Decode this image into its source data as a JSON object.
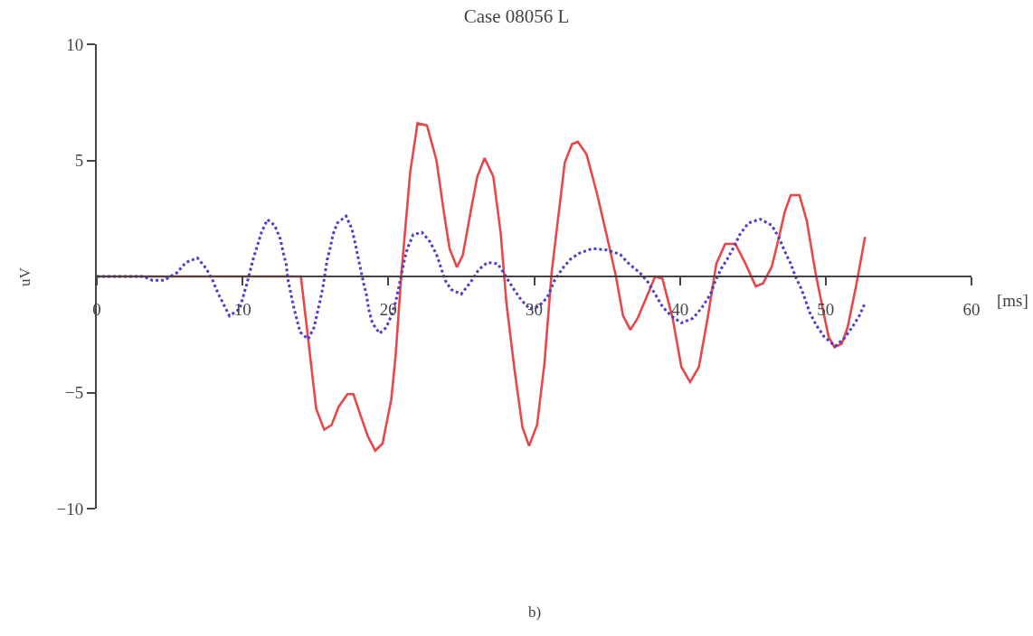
{
  "chart_data": {
    "type": "line",
    "title": "Case 08056 L",
    "xlabel": "[ms]",
    "ylabel": "uV",
    "annotations": [
      "b)"
    ],
    "xlim": [
      0,
      60
    ],
    "xticks": [
      0,
      10,
      20,
      30,
      40,
      50,
      60
    ],
    "ylim": [
      -10,
      10
    ],
    "yticks": [
      10,
      5,
      {
        "value": -5,
        "label": "−5"
      },
      {
        "value": -10,
        "label": "−10"
      }
    ],
    "marker": "none",
    "series": [
      {
        "color": "#e8474a",
        "line_style": "solid",
        "x": [
          0,
          14.0,
          14.5,
          15.05,
          15.6,
          16.1,
          16.6,
          17.2,
          17.6,
          18.1,
          18.6,
          19.1,
          19.6,
          20.2,
          20.5,
          20.9,
          21.5,
          22.0,
          22.65,
          23.3,
          23.8,
          24.2,
          24.7,
          25.1,
          25.65,
          26.1,
          26.6,
          27.2,
          27.7,
          28.1,
          28.65,
          29.2,
          29.65,
          30.2,
          30.7,
          31.2,
          32.1,
          32.6,
          33.0,
          33.6,
          34.3,
          34.95,
          35.6,
          36.1,
          36.6,
          37.1,
          37.8,
          38.3,
          38.8,
          39.5,
          40.1,
          40.7,
          41.3,
          41.9,
          42.5,
          43.1,
          43.8,
          44.5,
          45.2,
          45.7,
          46.3,
          46.8,
          47.2,
          47.6,
          48.2,
          48.7,
          49.3,
          49.8,
          50.2,
          50.6,
          51.1,
          51.5,
          52.1,
          52.7
        ],
        "values": [
          0,
          0,
          -2.7,
          -5.7,
          -6.6,
          -6.4,
          -5.6,
          -5.07,
          -5.07,
          -6.0,
          -6.9,
          -7.5,
          -7.2,
          -5.3,
          -3.4,
          0.16,
          4.5,
          6.6,
          6.5,
          5.0,
          2.8,
          1.2,
          0.4,
          0.9,
          2.8,
          4.3,
          5.1,
          4.3,
          1.9,
          -1.15,
          -4.0,
          -6.5,
          -7.3,
          -6.4,
          -3.8,
          0.16,
          4.9,
          5.7,
          5.8,
          5.25,
          3.6,
          1.85,
          0.04,
          -1.7,
          -2.3,
          -1.8,
          -0.76,
          0,
          -0.1,
          -1.8,
          -3.9,
          -4.55,
          -3.9,
          -1.8,
          0.55,
          1.4,
          1.4,
          0.55,
          -0.43,
          -0.3,
          0.42,
          1.7,
          2.8,
          3.5,
          3.5,
          2.4,
          0.16,
          -1.4,
          -2.6,
          -3.05,
          -2.9,
          -2.2,
          -0.36,
          1.7
        ]
      },
      {
        "color": "#4a3fc8",
        "line_style": "dotted",
        "x": [
          0,
          3.2,
          3.8,
          4.6,
          5.5,
          6.1,
          6.9,
          7.5,
          7.95,
          8.3,
          8.7,
          9.1,
          9.8,
          10.3,
          10.75,
          11.1,
          11.3,
          11.7,
          12.2,
          12.6,
          12.8,
          13.0,
          13.1,
          13.3,
          13.5,
          13.7,
          13.95,
          14.5,
          14.9,
          15.3,
          15.5,
          15.8,
          16.0,
          16.2,
          16.5,
          17.1,
          17.5,
          17.7,
          17.9,
          18.1,
          18.3,
          18.5,
          18.65,
          18.9,
          19.4,
          19.85,
          20.2,
          20.5,
          20.7,
          20.9,
          21.1,
          21.3,
          21.7,
          22.3,
          22.85,
          23.3,
          23.6,
          23.9,
          24.3,
          25.0,
          25.65,
          26.2,
          26.8,
          27.5,
          27.9,
          28.55,
          29.1,
          29.7,
          30.3,
          30.9,
          31.4,
          31.95,
          32.5,
          33.1,
          34.0,
          35.0,
          35.9,
          36.5,
          37.25,
          37.8,
          38.3,
          38.8,
          39.4,
          40.1,
          40.9,
          41.5,
          42.1,
          42.4,
          42.8,
          43.25,
          43.7,
          44.1,
          44.7,
          45.5,
          46.3,
          46.8,
          47.2,
          47.6,
          47.9,
          48.3,
          48.6,
          48.9,
          49.35,
          49.9,
          50.65,
          51.3,
          51.8,
          52.3,
          52.7
        ],
        "values": [
          0,
          0,
          -0.17,
          -0.17,
          0.16,
          0.6,
          0.8,
          0.35,
          -0.17,
          -0.7,
          -1.2,
          -1.7,
          -1.4,
          -0.3,
          0.8,
          1.5,
          1.9,
          2.45,
          2.2,
          1.6,
          1.0,
          0.5,
          -0.1,
          -0.7,
          -1.3,
          -1.8,
          -2.4,
          -2.7,
          -2.2,
          -1.1,
          -0.5,
          0.7,
          1.2,
          1.8,
          2.3,
          2.6,
          2.05,
          1.5,
          0.9,
          0.3,
          -0.3,
          -0.8,
          -1.4,
          -2.0,
          -2.45,
          -2.2,
          -1.7,
          -1.1,
          -0.5,
          0.1,
          0.7,
          1.2,
          1.8,
          1.9,
          1.5,
          0.95,
          0.4,
          -0.17,
          -0.56,
          -0.76,
          -0.24,
          0.3,
          0.6,
          0.55,
          0.16,
          -0.5,
          -1.0,
          -1.4,
          -1.3,
          -0.9,
          -0.17,
          0.35,
          0.75,
          1.0,
          1.2,
          1.14,
          0.95,
          0.55,
          0.16,
          -0.24,
          -0.76,
          -1.3,
          -1.7,
          -2.0,
          -1.8,
          -1.35,
          -0.76,
          -0.24,
          0.3,
          0.75,
          1.27,
          1.8,
          2.3,
          2.47,
          2.2,
          1.66,
          1.07,
          0.55,
          0.03,
          -0.5,
          -1.0,
          -1.55,
          -2.1,
          -2.6,
          -3.0,
          -2.65,
          -2.2,
          -1.7,
          -1.15
        ]
      }
    ]
  }
}
